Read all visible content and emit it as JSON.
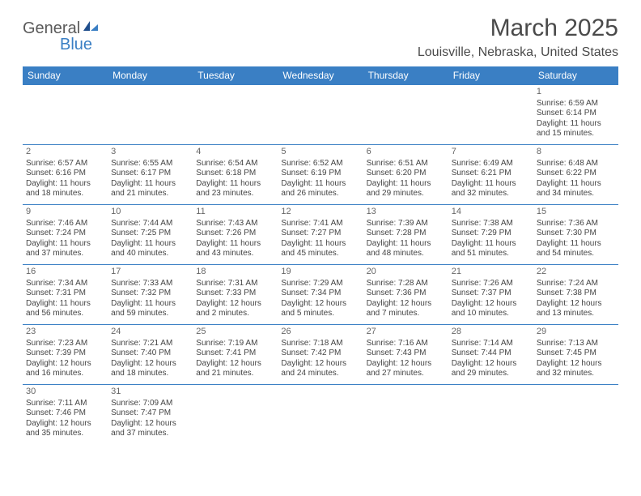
{
  "logo": {
    "part1": "General",
    "part2": "Blue"
  },
  "title": "March 2025",
  "location": "Louisville, Nebraska, United States",
  "colors": {
    "header_bg": "#3a7fc4",
    "header_text": "#ffffff",
    "border": "#3a7fc4",
    "text": "#444444",
    "title": "#4a4a4a"
  },
  "typography": {
    "title_fontsize": 30,
    "location_fontsize": 16,
    "dayheader_fontsize": 12,
    "cell_fontsize": 10
  },
  "day_headers": [
    "Sunday",
    "Monday",
    "Tuesday",
    "Wednesday",
    "Thursday",
    "Friday",
    "Saturday"
  ],
  "weeks": [
    [
      null,
      null,
      null,
      null,
      null,
      null,
      {
        "n": "1",
        "sr": "Sunrise: 6:59 AM",
        "ss": "Sunset: 6:14 PM",
        "dl1": "Daylight: 11 hours",
        "dl2": "and 15 minutes."
      }
    ],
    [
      {
        "n": "2",
        "sr": "Sunrise: 6:57 AM",
        "ss": "Sunset: 6:16 PM",
        "dl1": "Daylight: 11 hours",
        "dl2": "and 18 minutes."
      },
      {
        "n": "3",
        "sr": "Sunrise: 6:55 AM",
        "ss": "Sunset: 6:17 PM",
        "dl1": "Daylight: 11 hours",
        "dl2": "and 21 minutes."
      },
      {
        "n": "4",
        "sr": "Sunrise: 6:54 AM",
        "ss": "Sunset: 6:18 PM",
        "dl1": "Daylight: 11 hours",
        "dl2": "and 23 minutes."
      },
      {
        "n": "5",
        "sr": "Sunrise: 6:52 AM",
        "ss": "Sunset: 6:19 PM",
        "dl1": "Daylight: 11 hours",
        "dl2": "and 26 minutes."
      },
      {
        "n": "6",
        "sr": "Sunrise: 6:51 AM",
        "ss": "Sunset: 6:20 PM",
        "dl1": "Daylight: 11 hours",
        "dl2": "and 29 minutes."
      },
      {
        "n": "7",
        "sr": "Sunrise: 6:49 AM",
        "ss": "Sunset: 6:21 PM",
        "dl1": "Daylight: 11 hours",
        "dl2": "and 32 minutes."
      },
      {
        "n": "8",
        "sr": "Sunrise: 6:48 AM",
        "ss": "Sunset: 6:22 PM",
        "dl1": "Daylight: 11 hours",
        "dl2": "and 34 minutes."
      }
    ],
    [
      {
        "n": "9",
        "sr": "Sunrise: 7:46 AM",
        "ss": "Sunset: 7:24 PM",
        "dl1": "Daylight: 11 hours",
        "dl2": "and 37 minutes."
      },
      {
        "n": "10",
        "sr": "Sunrise: 7:44 AM",
        "ss": "Sunset: 7:25 PM",
        "dl1": "Daylight: 11 hours",
        "dl2": "and 40 minutes."
      },
      {
        "n": "11",
        "sr": "Sunrise: 7:43 AM",
        "ss": "Sunset: 7:26 PM",
        "dl1": "Daylight: 11 hours",
        "dl2": "and 43 minutes."
      },
      {
        "n": "12",
        "sr": "Sunrise: 7:41 AM",
        "ss": "Sunset: 7:27 PM",
        "dl1": "Daylight: 11 hours",
        "dl2": "and 45 minutes."
      },
      {
        "n": "13",
        "sr": "Sunrise: 7:39 AM",
        "ss": "Sunset: 7:28 PM",
        "dl1": "Daylight: 11 hours",
        "dl2": "and 48 minutes."
      },
      {
        "n": "14",
        "sr": "Sunrise: 7:38 AM",
        "ss": "Sunset: 7:29 PM",
        "dl1": "Daylight: 11 hours",
        "dl2": "and 51 minutes."
      },
      {
        "n": "15",
        "sr": "Sunrise: 7:36 AM",
        "ss": "Sunset: 7:30 PM",
        "dl1": "Daylight: 11 hours",
        "dl2": "and 54 minutes."
      }
    ],
    [
      {
        "n": "16",
        "sr": "Sunrise: 7:34 AM",
        "ss": "Sunset: 7:31 PM",
        "dl1": "Daylight: 11 hours",
        "dl2": "and 56 minutes."
      },
      {
        "n": "17",
        "sr": "Sunrise: 7:33 AM",
        "ss": "Sunset: 7:32 PM",
        "dl1": "Daylight: 11 hours",
        "dl2": "and 59 minutes."
      },
      {
        "n": "18",
        "sr": "Sunrise: 7:31 AM",
        "ss": "Sunset: 7:33 PM",
        "dl1": "Daylight: 12 hours",
        "dl2": "and 2 minutes."
      },
      {
        "n": "19",
        "sr": "Sunrise: 7:29 AM",
        "ss": "Sunset: 7:34 PM",
        "dl1": "Daylight: 12 hours",
        "dl2": "and 5 minutes."
      },
      {
        "n": "20",
        "sr": "Sunrise: 7:28 AM",
        "ss": "Sunset: 7:36 PM",
        "dl1": "Daylight: 12 hours",
        "dl2": "and 7 minutes."
      },
      {
        "n": "21",
        "sr": "Sunrise: 7:26 AM",
        "ss": "Sunset: 7:37 PM",
        "dl1": "Daylight: 12 hours",
        "dl2": "and 10 minutes."
      },
      {
        "n": "22",
        "sr": "Sunrise: 7:24 AM",
        "ss": "Sunset: 7:38 PM",
        "dl1": "Daylight: 12 hours",
        "dl2": "and 13 minutes."
      }
    ],
    [
      {
        "n": "23",
        "sr": "Sunrise: 7:23 AM",
        "ss": "Sunset: 7:39 PM",
        "dl1": "Daylight: 12 hours",
        "dl2": "and 16 minutes."
      },
      {
        "n": "24",
        "sr": "Sunrise: 7:21 AM",
        "ss": "Sunset: 7:40 PM",
        "dl1": "Daylight: 12 hours",
        "dl2": "and 18 minutes."
      },
      {
        "n": "25",
        "sr": "Sunrise: 7:19 AM",
        "ss": "Sunset: 7:41 PM",
        "dl1": "Daylight: 12 hours",
        "dl2": "and 21 minutes."
      },
      {
        "n": "26",
        "sr": "Sunrise: 7:18 AM",
        "ss": "Sunset: 7:42 PM",
        "dl1": "Daylight: 12 hours",
        "dl2": "and 24 minutes."
      },
      {
        "n": "27",
        "sr": "Sunrise: 7:16 AM",
        "ss": "Sunset: 7:43 PM",
        "dl1": "Daylight: 12 hours",
        "dl2": "and 27 minutes."
      },
      {
        "n": "28",
        "sr": "Sunrise: 7:14 AM",
        "ss": "Sunset: 7:44 PM",
        "dl1": "Daylight: 12 hours",
        "dl2": "and 29 minutes."
      },
      {
        "n": "29",
        "sr": "Sunrise: 7:13 AM",
        "ss": "Sunset: 7:45 PM",
        "dl1": "Daylight: 12 hours",
        "dl2": "and 32 minutes."
      }
    ],
    [
      {
        "n": "30",
        "sr": "Sunrise: 7:11 AM",
        "ss": "Sunset: 7:46 PM",
        "dl1": "Daylight: 12 hours",
        "dl2": "and 35 minutes."
      },
      {
        "n": "31",
        "sr": "Sunrise: 7:09 AM",
        "ss": "Sunset: 7:47 PM",
        "dl1": "Daylight: 12 hours",
        "dl2": "and 37 minutes."
      },
      null,
      null,
      null,
      null,
      null
    ]
  ]
}
